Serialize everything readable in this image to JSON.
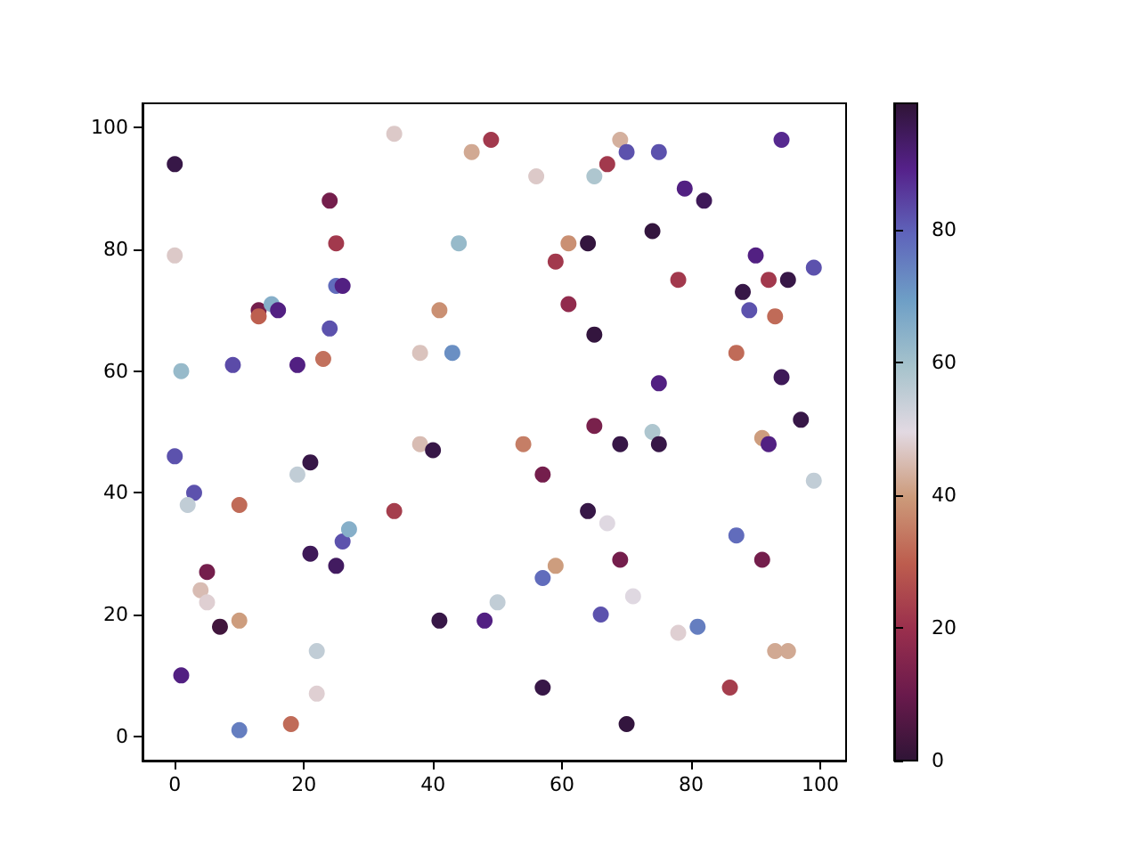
{
  "chart_data": {
    "type": "scatter",
    "marker": "circle",
    "grid": false,
    "xlim": [
      -5,
      104
    ],
    "ylim": [
      -4,
      104
    ],
    "xticks": [
      0,
      20,
      40,
      60,
      80,
      100
    ],
    "yticks": [
      0,
      20,
      40,
      60,
      80,
      100
    ],
    "clim": [
      0,
      99
    ],
    "cticks": [
      0,
      20,
      40,
      60,
      80
    ],
    "x": [
      0,
      0,
      1,
      0,
      3,
      2,
      1,
      5,
      4,
      5,
      7,
      10,
      10,
      10,
      18,
      9,
      13,
      13,
      15,
      16,
      24,
      25,
      25,
      26,
      24,
      19,
      23,
      19,
      21,
      21,
      25,
      26,
      27,
      22,
      22,
      34,
      34,
      38,
      38,
      40,
      41,
      41,
      43,
      44,
      46,
      49,
      48,
      50,
      54,
      56,
      57,
      57,
      57,
      59,
      59,
      61,
      61,
      64,
      65,
      67,
      65,
      65,
      64,
      67,
      66,
      69,
      70,
      69,
      69,
      70,
      71,
      74,
      74,
      75,
      75,
      75,
      78,
      78,
      79,
      82,
      81,
      86,
      87,
      87,
      88,
      89,
      90,
      91,
      92,
      91,
      92,
      95,
      93,
      94,
      93,
      95,
      94,
      97,
      99,
      99
    ],
    "values": [
      94,
      79,
      60,
      46,
      40,
      38,
      10,
      27,
      24,
      22,
      18,
      19,
      38,
      1,
      2,
      61,
      70,
      69,
      71,
      70,
      88,
      81,
      74,
      74,
      67,
      61,
      62,
      43,
      45,
      30,
      28,
      32,
      34,
      14,
      7,
      99,
      37,
      63,
      48,
      47,
      70,
      19,
      63,
      81,
      96,
      98,
      19,
      22,
      48,
      92,
      43,
      8,
      26,
      28,
      78,
      81,
      71,
      81,
      92,
      94,
      66,
      51,
      37,
      35,
      20,
      98,
      96,
      48,
      29,
      2,
      23,
      83,
      50,
      48,
      58,
      96,
      75,
      17,
      90,
      88,
      18,
      8,
      63,
      33,
      73,
      70,
      79,
      49,
      48,
      29,
      75,
      75,
      69,
      59,
      14,
      14,
      98,
      52,
      77,
      42
    ],
    "cvalues": [
      97,
      47,
      62,
      82,
      82,
      55,
      90,
      12,
      45,
      48,
      3,
      40,
      32,
      75,
      32,
      83,
      12,
      30,
      65,
      90,
      12,
      22,
      78,
      90,
      82,
      90,
      33,
      55,
      97,
      95,
      94,
      82,
      65,
      55,
      48,
      47,
      23,
      46,
      45,
      97,
      38,
      97,
      72,
      62,
      42,
      22,
      90,
      55,
      35,
      47,
      12,
      97,
      78,
      40,
      22,
      38,
      18,
      98,
      58,
      22,
      98,
      13,
      97,
      50,
      82,
      43,
      82,
      97,
      12,
      98,
      50,
      98,
      58,
      97,
      90,
      82,
      22,
      48,
      90,
      95,
      75,
      23,
      32,
      78,
      97,
      82,
      90,
      40,
      90,
      12,
      22,
      97,
      32,
      95,
      42,
      42,
      88,
      97,
      82,
      55
    ]
  }
}
